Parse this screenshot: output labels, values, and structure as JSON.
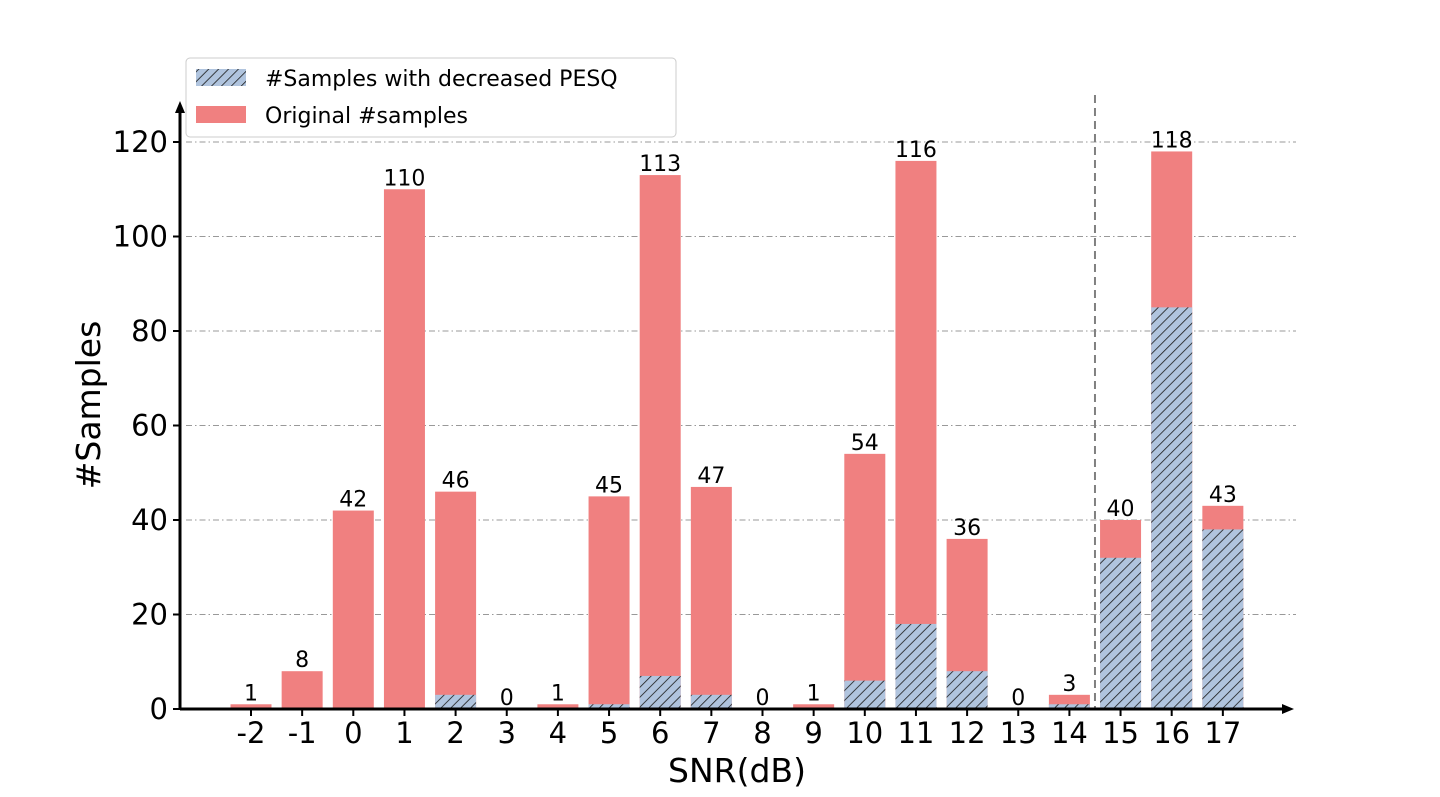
{
  "chart_data": {
    "type": "bar",
    "title": "",
    "xlabel": "SNR(dB)",
    "ylabel": "#Samples",
    "categories": [
      "-2",
      "-1",
      "0",
      "1",
      "2",
      "3",
      "4",
      "5",
      "6",
      "7",
      "8",
      "9",
      "10",
      "11",
      "12",
      "13",
      "14",
      "15",
      "16",
      "17"
    ],
    "series": [
      {
        "name": "Original #samples",
        "color": "#f08080",
        "values": [
          1,
          8,
          42,
          110,
          46,
          0,
          1,
          45,
          113,
          47,
          0,
          1,
          54,
          116,
          36,
          0,
          3,
          40,
          118,
          43
        ]
      },
      {
        "name": "#Samples with decreased PESQ",
        "color": "#b0c4de",
        "pattern": "hatch",
        "values": [
          0,
          0,
          0,
          0,
          3,
          0,
          0,
          1,
          7,
          3,
          0,
          0,
          6,
          18,
          8,
          0,
          1,
          32,
          85,
          38
        ]
      }
    ],
    "data_labels": [
      "1",
      "8",
      "42",
      "110",
      "46",
      "0",
      "1",
      "45",
      "113",
      "47",
      "0",
      "1",
      "54",
      "116",
      "36",
      "0",
      "3",
      "40",
      "118",
      "43"
    ],
    "ylim": [
      0,
      128
    ],
    "yticks": [
      "0",
      "20",
      "40",
      "60",
      "80",
      "100",
      "120"
    ],
    "grid": "horizontal dash-dot",
    "legend": "top-left",
    "separator_after_category": "14"
  }
}
